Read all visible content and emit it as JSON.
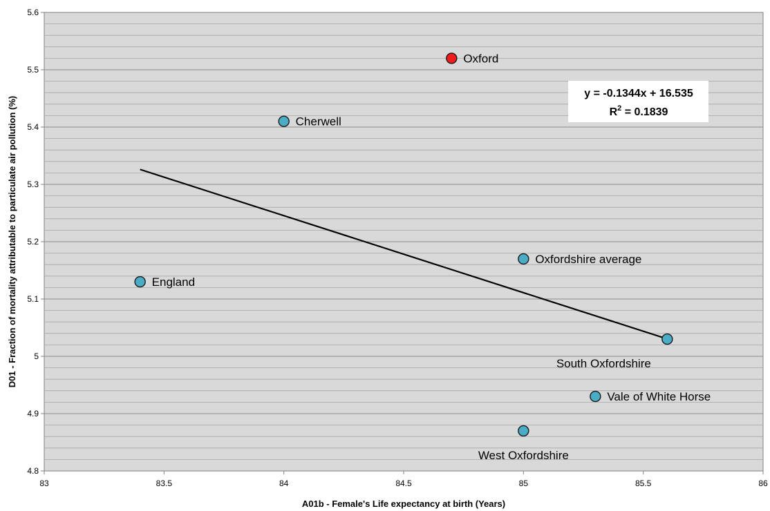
{
  "chart_data": {
    "type": "scatter",
    "title": "",
    "xlabel": "A01b - Female's Life expectancy at birth (Years)",
    "ylabel": "D01 - Fraction of mortality attributable to particulate air pollution (%)",
    "xlim": [
      83,
      86
    ],
    "ylim": [
      4.8,
      5.6
    ],
    "x_ticks": [
      "83",
      "83.5",
      "84",
      "84.5",
      "85",
      "85.5",
      "86"
    ],
    "y_ticks": [
      "4.8",
      "4.9",
      "5",
      "5.1",
      "5.2",
      "5.3",
      "5.4",
      "5.5",
      "5.6"
    ],
    "grid": true,
    "points": [
      {
        "label": "Oxford",
        "x": 84.7,
        "y": 5.52,
        "color": "#ee1c1c"
      },
      {
        "label": "Cherwell",
        "x": 84.0,
        "y": 5.41,
        "color": "#4bacc6"
      },
      {
        "label": "Oxfordshire average",
        "x": 85.0,
        "y": 5.17,
        "color": "#4bacc6"
      },
      {
        "label": "England",
        "x": 83.4,
        "y": 5.13,
        "color": "#4bacc6"
      },
      {
        "label": "South Oxfordshire",
        "x": 85.6,
        "y": 5.03,
        "color": "#4bacc6"
      },
      {
        "label": "Vale of White Horse",
        "x": 85.3,
        "y": 4.93,
        "color": "#4bacc6"
      },
      {
        "label": "West Oxfordshire",
        "x": 85.0,
        "y": 4.87,
        "color": "#4bacc6"
      }
    ],
    "trendline": {
      "equation": "y = -0.1344x + 16.535",
      "r2_prefix": "R",
      "r2_sup": "2",
      "r2_value": " = 0.1839",
      "slope": -0.1344,
      "intercept": 16.535,
      "x_range": [
        83.4,
        85.6
      ]
    }
  }
}
